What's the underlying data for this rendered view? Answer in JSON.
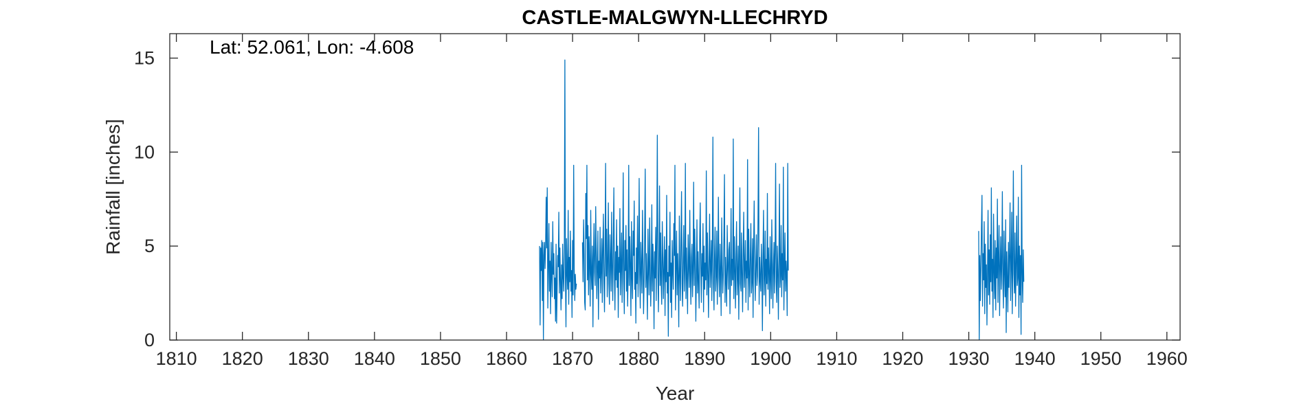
{
  "chart_data": {
    "type": "line",
    "title": "CASTLE-MALGWYN-LLECHRYD",
    "xlabel": "Year",
    "ylabel": "Rainfall [inches]",
    "annotation": "Lat: 52.061, Lon: -4.608",
    "xlim": [
      1809,
      1962
    ],
    "ylim": [
      0,
      16.3
    ],
    "x_ticks": [
      1810,
      1820,
      1830,
      1840,
      1850,
      1860,
      1870,
      1880,
      1890,
      1900,
      1910,
      1920,
      1930,
      1940,
      1950,
      1960
    ],
    "y_ticks": [
      0,
      5,
      10,
      15
    ],
    "grid": false,
    "line_color": "#0072BD",
    "series": [
      {
        "segments": [
          {
            "start_year": 1865.0,
            "step_years": 0.0833333,
            "values": [
              5.0,
              0.8,
              4.9,
              3.7,
              5.3,
              2.1,
              5.2,
              0.0,
              4.5,
              5.2,
              3.8,
              5.1,
              7.6,
              4.9,
              8.1,
              1.7,
              3.9,
              6.2,
              2.6,
              4.2,
              1.4,
              5.2,
              3.4,
              2.3,
              6.3,
              3.5,
              4.6,
              2.2,
              3.3,
              1.0,
              5.1,
              0.9,
              2.8,
              4.5,
              3.9,
              6.8,
              2.5,
              4.9,
              3.1,
              1.6,
              4.0,
              2.2,
              5.1,
              3.3,
              2.6,
              4.7,
              14.9,
              3.4,
              0.7,
              5.4,
              3.6,
              2.7,
              6.9,
              1.9,
              4.4,
              3.1,
              5.8,
              2.6,
              3.7,
              1.2,
              5.3,
              2.4,
              9.3,
              3.8,
              2.1,
              3.5,
              2.7,
              3.0
            ]
          },
          {
            "start_year": 1871.5,
            "step_years": 0.0833333,
            "values": [
              5.2,
              3.1,
              6.4,
              4.6,
              2.0,
              1.6,
              7.8,
              5.4,
              9.3,
              3.2,
              6.1,
              2.4,
              5.5,
              4.0,
              1.8,
              6.9,
              3.5,
              2.7,
              5.0,
              0.7,
              4.4,
              6.2,
              3.6,
              2.9,
              7.1,
              4.8,
              2.2,
              3.9,
              5.8,
              1.1,
              4.2,
              3.3,
              6.0,
              2.5,
              3.7,
              5.4,
              2.0,
              4.9,
              6.7,
              3.1,
              1.5,
              4.6,
              9.4,
              3.4,
              5.9,
              2.3,
              4.1,
              7.3,
              3.0,
              1.9,
              5.6,
              4.3,
              2.6,
              6.8,
              3.8,
              2.1,
              5.2,
              8.1,
              3.5,
              1.6,
              4.7,
              3.2,
              6.4,
              2.8,
              5.0,
              1.2,
              4.4,
              3.6,
              7.0,
              2.4,
              3.9,
              5.7,
              2.0,
              4.2,
              8.9,
              3.1,
              1.4,
              5.3,
              3.7,
              6.1,
              2.6,
              4.8,
              1.8,
              3.4,
              9.3,
              2.9,
              5.5,
              4.0,
              1.3,
              6.3,
              3.3,
              2.2,
              5.8,
              4.5,
              7.4,
              2.7,
              3.6,
              0.9,
              4.9,
              3.0,
              6.6,
              2.3,
              4.1,
              8.6,
              3.5,
              1.7,
              5.2,
              3.8,
              2.5,
              6.9,
              4.3,
              1.4,
              3.1,
              5.6,
              9.1,
              2.8,
              4.6,
              3.2,
              1.1,
              5.9,
              3.7,
              2.4,
              6.5,
              4.0,
              1.8,
              3.4,
              7.2,
              2.6,
              5.1,
              3.9,
              0.6,
              4.7,
              3.3,
              6.0,
              2.1,
              5.4,
              10.9,
              3.6,
              1.5,
              4.2,
              8.2,
              2.9,
              5.7,
              3.0,
              1.9,
              6.3,
              4.4,
              2.2,
              3.8,
              5.5,
              1.3,
              4.8,
              3.1,
              7.7,
              2.5,
              3.6,
              0.2,
              5.0,
              3.4,
              6.8,
              2.0,
              4.1,
              1.2,
              5.3,
              3.7,
              2.7,
              6.2,
              4.5,
              9.3,
              1.6,
              3.9,
              5.8,
              2.4,
              4.6,
              3.2,
              0.7,
              6.6,
              3.5,
              2.1,
              5.2,
              7.9,
              3.0,
              1.8,
              4.3,
              6.1,
              2.6,
              3.8,
              9.4,
              2.2,
              4.9,
              3.3,
              1.4,
              5.6,
              4.0,
              2.8,
              6.9,
              3.6,
              1.9,
              4.4,
              5.1,
              2.3,
              3.7,
              8.4,
              2.9,
              5.9,
              4.2,
              1.0,
              3.5,
              6.4,
              2.5,
              4.7,
              3.1,
              1.7,
              5.4,
              7.3,
              3.9,
              2.0,
              4.6,
              3.4,
              6.2,
              1.5,
              5.0,
              2.7,
              4.1,
              3.2,
              9.0,
              2.4,
              5.7,
              3.6,
              1.2,
              4.3,
              6.7,
              2.8,
              3.8,
              5.3,
              2.1,
              4.9,
              10.8,
              3.0,
              1.6,
              4.5,
              6.0,
              2.6,
              3.4,
              5.8,
              1.9,
              4.2,
              7.6,
              3.3,
              2.3,
              5.1,
              3.7,
              1.3,
              6.5,
              4.0,
              2.5,
              3.5,
              5.6,
              8.8,
              2.0,
              4.4,
              3.1,
              1.8,
              6.1,
              3.9,
              2.7,
              4.8,
              5.2,
              1.4,
              3.6,
              7.0,
              2.9,
              4.3,
              3.2,
              10.7,
              2.2,
              5.5,
              3.8,
              1.7,
              4.6,
              6.3,
              2.4,
              3.4,
              5.0,
              1.1,
              4.1,
              8.1,
              3.0,
              2.6,
              5.7,
              3.5,
              1.5,
              4.7,
              6.8,
              2.8,
              3.9,
              5.3,
              2.0,
              4.2,
              3.3,
              9.6,
              1.6,
              5.9,
              3.6,
              2.3,
              4.5,
              6.2,
              2.5,
              3.1,
              5.4,
              1.2,
              4.8,
              7.4,
              3.7,
              2.1,
              4.0,
              5.6,
              2.9,
              3.4,
              6.5,
              11.3,
              1.9,
              4.4,
              3.2,
              2.6,
              5.1,
              3.8,
              0.5,
              4.6,
              6.9,
              2.4,
              3.5,
              5.8,
              1.8,
              4.3,
              3.0,
              7.8,
              2.7,
              4.9,
              3.6,
              1.4,
              5.5,
              3.3,
              2.2,
              6.4,
              4.1,
              1.7,
              3.9,
              5.2,
              2.5,
              4.7,
              9.4,
              3.1,
              2.0,
              5.0,
              3.7,
              1.1,
              4.4,
              8.3,
              2.8,
              3.4,
              6.1,
              2.3,
              4.6,
              3.2,
              9.2,
              1.6,
              3.8,
              5.7,
              2.6,
              4.2,
              3.5,
              1.3,
              9.4,
              3.7
            ]
          },
          {
            "start_year": 1931.5,
            "step_years": 0.0833333,
            "values": [
              5.8,
              0.0,
              4.5,
              2.1,
              3.8,
              5.9,
              7.7,
              1.8,
              4.6,
              3.2,
              6.3,
              1.4,
              5.1,
              2.8,
              4.0,
              0.8,
              3.5,
              6.9,
              2.4,
              4.8,
              1.9,
              5.6,
              3.1,
              8.1,
              2.6,
              4.3,
              1.2,
              6.7,
              3.7,
              2.2,
              5.3,
              1.6,
              4.9,
              3.3,
              7.5,
              2.0,
              4.4,
              6.1,
              1.3,
              3.8,
              5.5,
              2.7,
              4.1,
              7.9,
              3.0,
              1.7,
              5.8,
              3.6,
              2.3,
              6.4,
              0.4,
              4.7,
              3.2,
              1.5,
              5.2,
              2.8,
              4.6,
              7.3,
              2.1,
              3.9,
              6.8,
              1.4,
              4.2,
              9.0,
              3.5,
              2.5,
              5.7,
              1.8,
              4.0,
              6.6,
              2.9,
              3.3,
              7.6,
              1.2,
              5.0,
              2.4,
              4.5,
              0.3,
              9.3,
              3.6,
              2.0,
              4.8,
              3.1
            ]
          }
        ]
      }
    ]
  }
}
